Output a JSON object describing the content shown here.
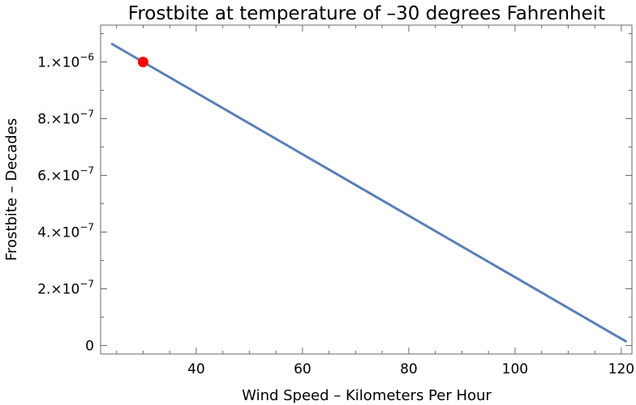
{
  "chart_data": {
    "type": "line",
    "title": "Frostbite at temperature of –30 degrees Fahrenheit",
    "xlabel": "Wind Speed – Kilometers Per Hour",
    "ylabel": "Frostbite – Decades",
    "xlim": [
      22,
      122
    ],
    "ylim": [
      -3e-08,
      1.13e-06
    ],
    "x_ticks": [
      {
        "value": 40,
        "label": "40"
      },
      {
        "value": 60,
        "label": "60"
      },
      {
        "value": 80,
        "label": "80"
      },
      {
        "value": 100,
        "label": "100"
      },
      {
        "value": 120,
        "label": "120"
      }
    ],
    "y_ticks": [
      {
        "value": 0,
        "label": "0",
        "mantissa": "",
        "exponent": ""
      },
      {
        "value": 2e-07,
        "label": "2.×10⁻⁷",
        "mantissa": "2.×10",
        "exponent": "−7"
      },
      {
        "value": 4e-07,
        "label": "4.×10⁻⁷",
        "mantissa": "4.×10",
        "exponent": "−7"
      },
      {
        "value": 6e-07,
        "label": "6.×10⁻⁷",
        "mantissa": "6.×10",
        "exponent": "−7"
      },
      {
        "value": 8e-07,
        "label": "8.×10⁻⁷",
        "mantissa": "8.×10",
        "exponent": "−7"
      },
      {
        "value": 1e-06,
        "label": "1.×10⁻⁶",
        "mantissa": "1.×10",
        "exponent": "−6"
      }
    ],
    "series": [
      {
        "x": [
          24,
          121
        ],
        "y": [
          1.065e-06,
          1.3e-08
        ],
        "color": "#5a7fb5"
      }
    ],
    "highlight_point": {
      "x": 30,
      "y": 1e-06,
      "color": "#ff0000"
    },
    "grid": false,
    "frame": true
  }
}
